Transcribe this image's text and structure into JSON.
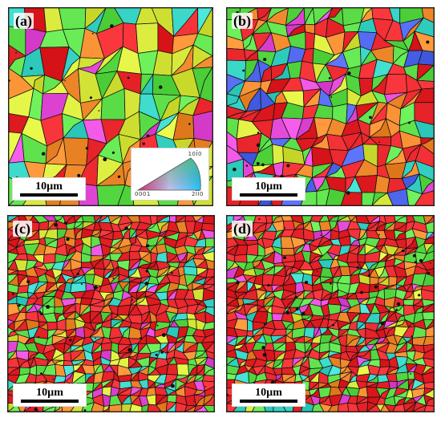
{
  "panels": [
    {
      "label": "(a)",
      "scalebar": "10µm"
    },
    {
      "label": "(b)",
      "scalebar": "10µm"
    },
    {
      "label": "(c)",
      "scalebar": "10µm"
    },
    {
      "label": "(d)",
      "scalebar": "10µm"
    }
  ],
  "ipf_key": {
    "top": "10Ī0",
    "bottom_left": "0001",
    "bottom_right": "2ĪĪ0"
  },
  "colors": {
    "red": "#e8262b",
    "green": "#5ee04a",
    "yellow": "#d8e83a",
    "orange": "#f08a2c",
    "magenta": "#e44ad8",
    "cyan": "#3ad6c8",
    "blue": "#4a63e8",
    "boundary": "#111111"
  }
}
